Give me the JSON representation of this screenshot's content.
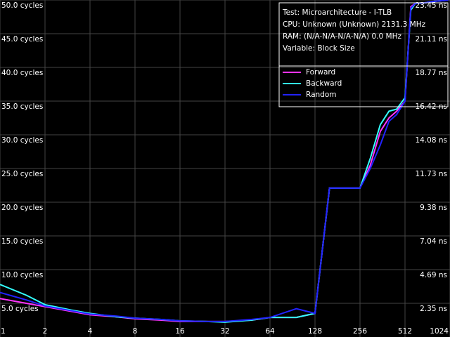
{
  "chart_data": {
    "type": "line",
    "annotations": [
      "Test: Microarchitecture - I-TLB",
      "CPU: Unknown (Unknown) 2131.3 MHz",
      "RAM:  (N/A-N/A-N/A-N/A) 0.0 MHz",
      "Variable: Block Size"
    ],
    "x": [
      1,
      1.5,
      2,
      3,
      4,
      6,
      8,
      12,
      16,
      24,
      32,
      48,
      64,
      96,
      128,
      160,
      192,
      256,
      300,
      350,
      400,
      450,
      512,
      560,
      600,
      700,
      800,
      1024
    ],
    "series": [
      {
        "name": "Forward",
        "color": "#ff33ff",
        "values": [
          5.7,
          5.0,
          4.5,
          3.8,
          3.3,
          3.0,
          2.7,
          2.5,
          2.3,
          2.3,
          2.3,
          2.5,
          2.9,
          2.9,
          3.5,
          22.1,
          22.1,
          22.1,
          25.5,
          30.5,
          32.5,
          33.5,
          35.0,
          49.0,
          49.5,
          49.6,
          49.8,
          50
        ]
      },
      {
        "name": "Backward",
        "color": "#33ffff",
        "values": [
          7.8,
          6.2,
          4.8,
          4.0,
          3.5,
          3.0,
          2.8,
          2.6,
          2.4,
          2.3,
          2.2,
          2.5,
          2.9,
          2.9,
          3.5,
          22.1,
          22.1,
          22.1,
          26.5,
          31.5,
          33.5,
          33.8,
          35.5,
          48.5,
          49.5,
          49.6,
          49.8,
          50
        ]
      },
      {
        "name": "Random",
        "color": "#2222ff",
        "values": [
          6.6,
          5.5,
          4.6,
          3.9,
          3.4,
          3.1,
          2.8,
          2.6,
          2.4,
          2.3,
          2.3,
          2.6,
          2.9,
          4.2,
          3.5,
          22.1,
          22.1,
          22.1,
          25.0,
          28.5,
          32.0,
          33.0,
          35.0,
          48.8,
          49.5,
          49.6,
          49.8,
          50
        ]
      }
    ],
    "xscale": "log",
    "xlim": [
      1,
      1024
    ],
    "xticks": [
      1,
      2,
      4,
      8,
      16,
      32,
      64,
      128,
      256,
      512,
      1024
    ],
    "ylim": [
      0,
      50
    ],
    "yticks": [
      {
        "value": 5,
        "label": "5.0 cycles"
      },
      {
        "value": 10,
        "label": "10.0 cycles"
      },
      {
        "value": 15,
        "label": "15.0 cycles"
      },
      {
        "value": 20,
        "label": "20.0 cycles"
      },
      {
        "value": 25,
        "label": "25.0 cycles"
      },
      {
        "value": 30,
        "label": "30.0 cycles"
      },
      {
        "value": 35,
        "label": "35.0 cycles"
      },
      {
        "value": 40,
        "label": "40.0 cycles"
      },
      {
        "value": 45,
        "label": "45.0 cycles"
      },
      {
        "value": 50,
        "label": "50.0 cycles"
      }
    ],
    "y2lim": [
      0,
      23.46
    ],
    "y2ticks": [
      {
        "value": 2.35,
        "label": "2.35 ns"
      },
      {
        "value": 4.69,
        "label": "4.69 ns"
      },
      {
        "value": 7.04,
        "label": "7.04 ns"
      },
      {
        "value": 9.38,
        "label": "9.38 ns"
      },
      {
        "value": 11.73,
        "label": "11.73 ns"
      },
      {
        "value": 14.08,
        "label": "14.08 ns"
      },
      {
        "value": 16.42,
        "label": "16.42 ns"
      },
      {
        "value": 18.77,
        "label": "18.77 ns"
      },
      {
        "value": 21.11,
        "label": "21.11 ns"
      },
      {
        "value": 23.45,
        "label": "23.45 ns"
      }
    ],
    "grid": true,
    "legend": "upper-right"
  }
}
